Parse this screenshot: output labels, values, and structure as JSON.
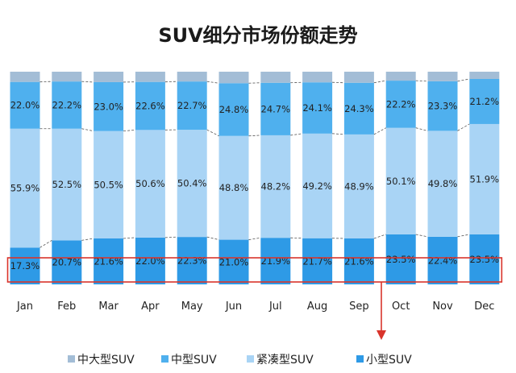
{
  "chart_data": {
    "type": "bar",
    "stacked": true,
    "percent": true,
    "title": "SUV细分市场份额走势",
    "xlabel": "",
    "ylabel": "",
    "ylim": [
      0,
      100
    ],
    "categories": [
      "Jan",
      "Feb",
      "Mar",
      "Apr",
      "May",
      "Jun",
      "Jul",
      "Aug",
      "Sep",
      "Oct",
      "Nov",
      "Dec"
    ],
    "series": [
      {
        "name": "小型SUV",
        "color": "#2E9AE6",
        "values": [
          17.3,
          20.7,
          21.6,
          22.0,
          22.3,
          21.0,
          21.9,
          21.7,
          21.6,
          23.5,
          22.4,
          23.5
        ],
        "labels": [
          "17.3%",
          "20.7%",
          "21.6%",
          "22.0%",
          "22.3%",
          "21.0%",
          "21.9%",
          "21.7%",
          "21.6%",
          "23.5%",
          "22.4%",
          "23.5%"
        ]
      },
      {
        "name": "紧凑型SUV",
        "color": "#A9D4F5",
        "values": [
          55.9,
          52.5,
          50.5,
          50.6,
          50.4,
          48.8,
          48.2,
          49.2,
          48.9,
          50.1,
          49.8,
          51.9
        ],
        "labels": [
          "55.9%",
          "52.5%",
          "50.5%",
          "50.6%",
          "50.4%",
          "48.8%",
          "48.2%",
          "49.2%",
          "48.9%",
          "50.1%",
          "49.8%",
          "51.9%"
        ]
      },
      {
        "name": "中型SUV",
        "color": "#4FB0EE",
        "values": [
          22.0,
          22.2,
          23.0,
          22.6,
          22.7,
          24.8,
          24.7,
          24.1,
          24.3,
          22.2,
          23.3,
          21.2
        ],
        "labels": [
          "22.0%",
          "22.2%",
          "23.0%",
          "22.6%",
          "22.7%",
          "24.8%",
          "24.7%",
          "24.1%",
          "24.3%",
          "22.2%",
          "23.3%",
          "21.2%"
        ]
      },
      {
        "name": "中大型SUV",
        "color": "#A3BDD6",
        "values": [
          4.8,
          4.6,
          4.9,
          4.8,
          4.6,
          5.4,
          5.2,
          5.0,
          5.2,
          4.2,
          4.5,
          3.4
        ],
        "labels": []
      }
    ],
    "legend": {
      "position": "bottom",
      "items": [
        "中大型SUV",
        "中型SUV",
        "紧凑型SUV",
        "小型SUV"
      ]
    },
    "highlight": {
      "series": "小型SUV",
      "box_color": "#D9342B",
      "arrow": "down"
    },
    "grid": false
  }
}
